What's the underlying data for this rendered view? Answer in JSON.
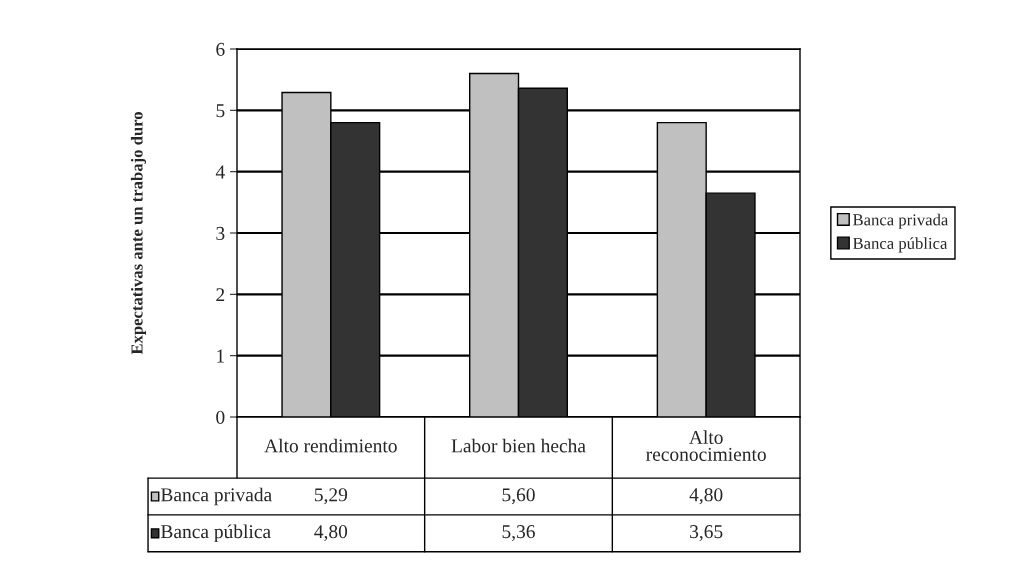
{
  "chart_data": {
    "type": "bar",
    "ylabel": "Expectativas ante un trabajo duro",
    "categories": [
      "Alto rendimiento",
      "Labor bien hecha",
      "Alto\nreconocimiento"
    ],
    "series": [
      {
        "name": "Banca privada",
        "color": "#c0c0c0",
        "values": [
          5.29,
          5.6,
          4.8
        ],
        "value_labels": [
          "5,29",
          "5,60",
          "4,80"
        ]
      },
      {
        "name": "Banca pública",
        "color": "#333333",
        "values": [
          4.8,
          5.36,
          3.65
        ],
        "value_labels": [
          "4,80",
          "5,36",
          "3,65"
        ]
      }
    ],
    "ylim": [
      0,
      6
    ],
    "yticks": [
      0,
      1,
      2,
      3,
      4,
      5,
      6
    ],
    "grid": "y",
    "legend": "right"
  }
}
